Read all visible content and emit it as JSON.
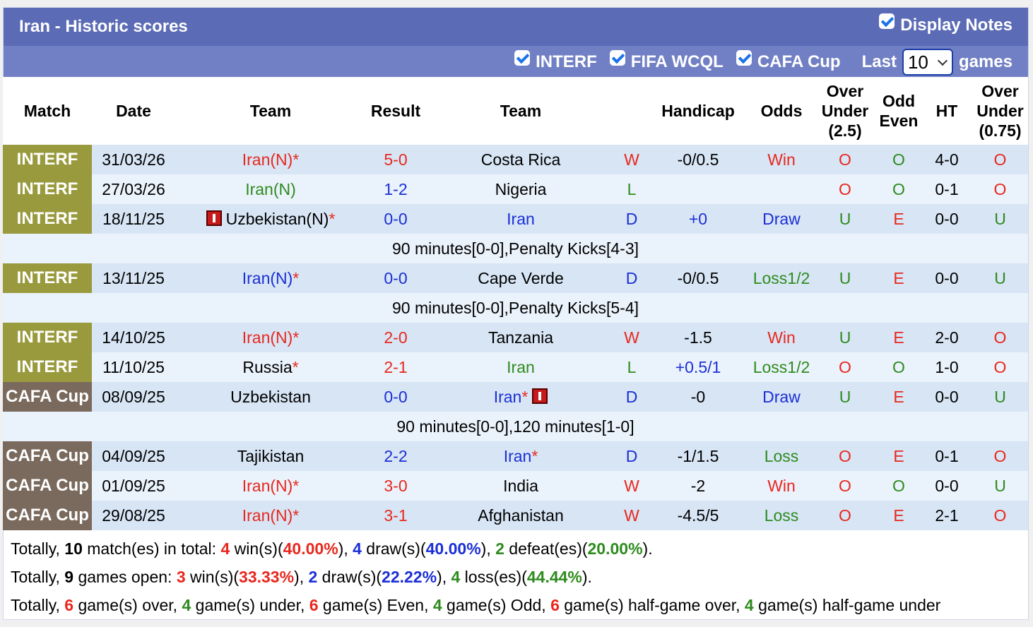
{
  "header": {
    "title": "Iran - Historic scores",
    "display_notes": "Display Notes"
  },
  "filters": {
    "interf": "INTERF",
    "fifa": "FIFA WCQL",
    "cafa": "CAFA Cup",
    "last_label": "Last",
    "last_value": "10",
    "games_label": "games"
  },
  "columns": {
    "match": "Match",
    "date": "Date",
    "team": "Team",
    "result": "Result",
    "team2": "Team",
    "handicap": "Handicap",
    "odds": "Odds",
    "ou1": "Over",
    "ou2": "Under",
    "ou3": "(2.5)",
    "oe1": "Odd",
    "oe2": "Even",
    "ht": "HT",
    "ou75_1": "Over",
    "ou75_2": "Under",
    "ou75_3": "(0.75)"
  },
  "rows": [
    {
      "match": "INTERF",
      "date": "31/03/26",
      "home": "Iran(N)",
      "home_star": "*",
      "h": "5",
      "a": "0",
      "away": "Costa Rica",
      "away_star": "",
      "wl": "W",
      "hcp": "-0/0.5",
      "odds": "Win",
      "ou": "O",
      "oe": "O",
      "ht": "4-0",
      "ou2": "O"
    },
    {
      "match": "INTERF",
      "date": "27/03/26",
      "home": "Iran(N)",
      "home_star": "",
      "h": "1",
      "a": "2",
      "away": "Nigeria",
      "away_star": "",
      "wl": "L",
      "hcp": "",
      "odds": "",
      "ou": "O",
      "oe": "O",
      "ht": "0-1",
      "ou2": "O"
    },
    {
      "match": "INTERF",
      "date": "18/11/25",
      "home": "Uzbekistan(N)",
      "home_star": "*",
      "h": "0",
      "a": "0",
      "away": "Iran",
      "away_star": "",
      "wl": "D",
      "hcp": "+0",
      "odds": "Draw",
      "ou": "U",
      "oe": "E",
      "ht": "0-0",
      "ou2": "U",
      "note": "90 minutes[0-0],Penalty Kicks[4-3]"
    },
    {
      "match": "INTERF",
      "date": "13/11/25",
      "home": "Iran(N)",
      "home_star": "*",
      "h": "0",
      "a": "0",
      "away": "Cape Verde",
      "away_star": "",
      "wl": "D",
      "hcp": "-0/0.5",
      "odds": "Loss1/2",
      "ou": "U",
      "oe": "E",
      "ht": "0-0",
      "ou2": "U",
      "note": "90 minutes[0-0],Penalty Kicks[5-4]"
    },
    {
      "match": "INTERF",
      "date": "14/10/25",
      "home": "Iran(N)",
      "home_star": "*",
      "h": "2",
      "a": "0",
      "away": "Tanzania",
      "away_star": "",
      "wl": "W",
      "hcp": "-1.5",
      "odds": "Win",
      "ou": "U",
      "oe": "E",
      "ht": "2-0",
      "ou2": "O"
    },
    {
      "match": "INTERF",
      "date": "11/10/25",
      "home": "Russia",
      "home_star": "*",
      "h": "2",
      "a": "1",
      "away": "Iran",
      "away_star": "",
      "wl": "L",
      "hcp": "+0.5/1",
      "odds": "Loss1/2",
      "ou": "O",
      "oe": "O",
      "ht": "1-0",
      "ou2": "O"
    },
    {
      "match": "CAFA Cup",
      "date": "08/09/25",
      "home": "Uzbekistan",
      "home_star": "",
      "h": "0",
      "a": "0",
      "away": "Iran",
      "away_star": "*",
      "wl": "D",
      "hcp": "-0",
      "odds": "Draw",
      "ou": "U",
      "oe": "E",
      "ht": "0-0",
      "ou2": "U",
      "note": "90 minutes[0-0],120 minutes[1-0]"
    },
    {
      "match": "CAFA Cup",
      "date": "04/09/25",
      "home": "Tajikistan",
      "home_star": "",
      "h": "2",
      "a": "2",
      "away": "Iran",
      "away_star": "*",
      "wl": "D",
      "hcp": "-1/1.5",
      "odds": "Loss",
      "ou": "O",
      "oe": "E",
      "ht": "0-1",
      "ou2": "O"
    },
    {
      "match": "CAFA Cup",
      "date": "01/09/25",
      "home": "Iran(N)",
      "home_star": "*",
      "h": "3",
      "a": "0",
      "away": "India",
      "away_star": "",
      "wl": "W",
      "hcp": "-2",
      "odds": "Win",
      "ou": "O",
      "oe": "O",
      "ht": "0-0",
      "ou2": "U"
    },
    {
      "match": "CAFA Cup",
      "date": "29/08/25",
      "home": "Iran(N)",
      "home_star": "*",
      "h": "3",
      "a": "1",
      "away": "Afghanistan",
      "away_star": "",
      "wl": "W",
      "hcp": "-4.5/5",
      "odds": "Loss",
      "ou": "O",
      "oe": "E",
      "ht": "2-1",
      "ou2": "O"
    }
  ],
  "summary": {
    "line1": {
      "a": "Totally, ",
      "n": "10",
      "b": " match(es) in total: ",
      "w": "4",
      "c": " win(s)(",
      "wp": "40.00%",
      "d": "), ",
      "dr": "4",
      "e": " draw(s)(",
      "dp": "40.00%",
      "f": "), ",
      "l": "2",
      "g": " defeat(es)(",
      "lp": "20.00%",
      "h": ")."
    },
    "line2": {
      "a": "Totally, ",
      "n": "9",
      "b": " games open: ",
      "w": "3",
      "c": " win(s)(",
      "wp": "33.33%",
      "d": "), ",
      "dr": "2",
      "e": " draw(s)(",
      "dp": "22.22%",
      "f": "), ",
      "l": "4",
      "g": " loss(es)(",
      "lp": "44.44%",
      "h": ")."
    },
    "line3": {
      "a": "Totally, ",
      "o": "6",
      "b": " game(s) over, ",
      "u": "4",
      "c": " game(s) under, ",
      "ev": "6",
      "d": " game(s) Even, ",
      "od": "4",
      "e": " game(s) Odd, ",
      "ho": "6",
      "f": " game(s) half-game over, ",
      "hu": "4",
      "g": " game(s) half-game under"
    }
  },
  "colors": {
    "title_bg": "#5b6bb5",
    "filter_bg": "#7180c4",
    "interf": "#999a3d",
    "cafa": "#7a6a5e",
    "red": "#e8281e",
    "blue": "#1b2fd6",
    "green": "#2e8b1e"
  }
}
